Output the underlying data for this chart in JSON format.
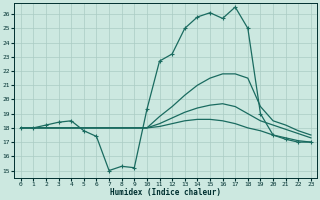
{
  "xlabel": "Humidex (Indice chaleur)",
  "background_color": "#cce8e0",
  "grid_color": "#aaccc4",
  "line_color": "#1a6b60",
  "xlim": [
    -0.5,
    23.5
  ],
  "ylim": [
    14.5,
    26.8
  ],
  "xticks": [
    0,
    1,
    2,
    3,
    4,
    5,
    6,
    7,
    8,
    9,
    10,
    11,
    12,
    13,
    14,
    15,
    16,
    17,
    18,
    19,
    20,
    21,
    22,
    23
  ],
  "yticks": [
    15,
    16,
    17,
    18,
    19,
    20,
    21,
    22,
    23,
    24,
    25,
    26
  ],
  "line1_x": [
    0,
    1,
    2,
    3,
    4,
    5,
    6,
    7,
    8,
    9,
    10,
    11,
    12,
    13,
    14,
    15,
    16,
    17,
    18,
    19,
    20,
    21,
    22,
    23
  ],
  "line1_y": [
    18,
    18,
    18.2,
    18.4,
    18.5,
    17.8,
    17.4,
    15.0,
    15.3,
    15.2,
    19.3,
    22.7,
    23.2,
    25.0,
    25.8,
    26.1,
    25.7,
    26.5,
    25.0,
    19.0,
    17.5,
    17.2,
    17.0,
    17.0
  ],
  "line2_x": [
    0,
    10,
    11,
    12,
    13,
    14,
    15,
    16,
    17,
    18,
    19,
    20,
    21,
    22,
    23
  ],
  "line2_y": [
    18,
    18,
    18.8,
    19.5,
    20.3,
    21.0,
    21.5,
    21.8,
    21.8,
    21.5,
    19.5,
    18.5,
    18.2,
    17.8,
    17.5
  ],
  "line3_x": [
    0,
    10,
    11,
    12,
    13,
    14,
    15,
    16,
    17,
    18,
    19,
    20,
    21,
    22,
    23
  ],
  "line3_y": [
    18,
    18,
    18.3,
    18.7,
    19.1,
    19.4,
    19.6,
    19.7,
    19.5,
    19.0,
    18.5,
    18.2,
    17.9,
    17.6,
    17.3
  ],
  "line4_x": [
    0,
    10,
    11,
    12,
    13,
    14,
    15,
    16,
    17,
    18,
    19,
    20,
    21,
    22,
    23
  ],
  "line4_y": [
    18,
    18,
    18.1,
    18.3,
    18.5,
    18.6,
    18.6,
    18.5,
    18.3,
    18.0,
    17.8,
    17.5,
    17.3,
    17.1,
    17.0
  ]
}
